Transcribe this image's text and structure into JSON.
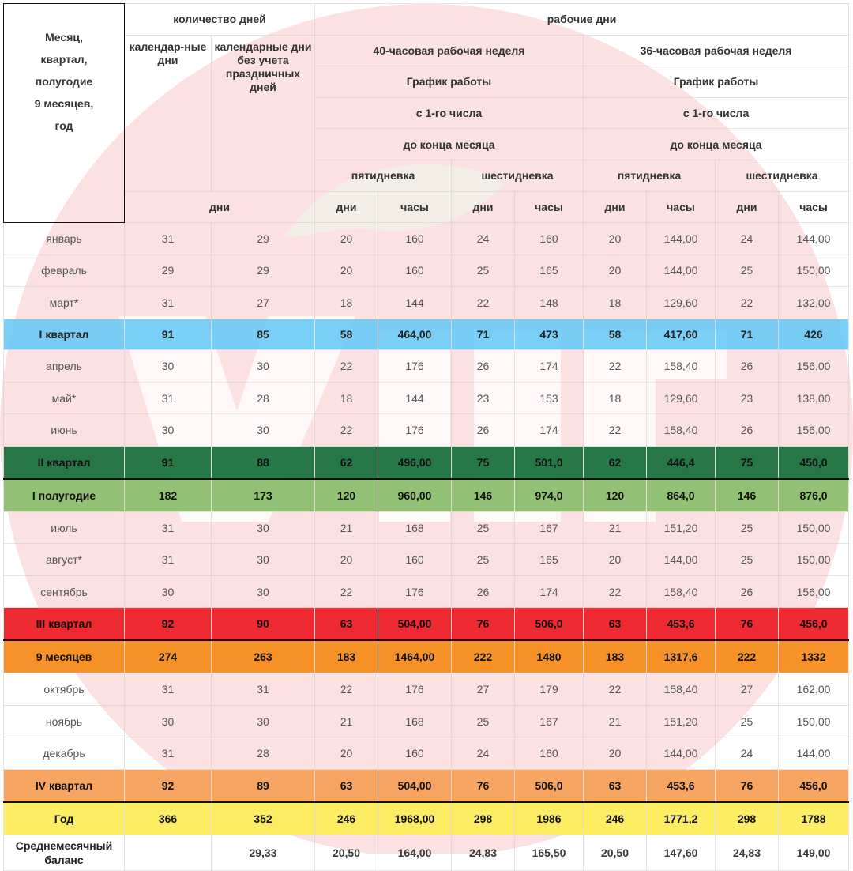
{
  "header": {
    "month_col": "Месяц, квартал, полугодие 9 месяцев, год",
    "days_count": "количество дней",
    "working_days": "рабочие дни",
    "calendar_days": "календар-ные дни",
    "calendar_no_holidays": "календарные дни без учета праздничных дней",
    "week40": "40-часовая рабочая неделя",
    "week36": "36-часовая рабочая неделя",
    "schedule": "График работы",
    "from_first": "с 1-го числа",
    "to_end": "до конца месяца",
    "five_day": "пятидневка",
    "six_day": "шестидневка",
    "days_unit": "дни",
    "days": "дни",
    "hours": "часы"
  },
  "rows": [
    {
      "name": "январь",
      "c": [
        "31",
        "29",
        "20",
        "160",
        "24",
        "160",
        "20",
        "144,00",
        "24",
        "144,00"
      ]
    },
    {
      "name": "февраль",
      "c": [
        "29",
        "29",
        "20",
        "160",
        "25",
        "165",
        "20",
        "144,00",
        "25",
        "150,00"
      ]
    },
    {
      "name": "март*",
      "c": [
        "31",
        "27",
        "18",
        "144",
        "22",
        "148",
        "18",
        "129,60",
        "22",
        "132,00"
      ]
    },
    {
      "name": "I квартал",
      "c": [
        "91",
        "85",
        "58",
        "464,00",
        "71",
        "473",
        "58",
        "417,60",
        "71",
        "426"
      ]
    },
    {
      "name": "апрель",
      "c": [
        "30",
        "30",
        "22",
        "176",
        "26",
        "174",
        "22",
        "158,40",
        "26",
        "156,00"
      ]
    },
    {
      "name": "май*",
      "c": [
        "31",
        "28",
        "18",
        "144",
        "23",
        "153",
        "18",
        "129,60",
        "23",
        "138,00"
      ]
    },
    {
      "name": "июнь",
      "c": [
        "30",
        "30",
        "22",
        "176",
        "26",
        "174",
        "22",
        "158,40",
        "26",
        "156,00"
      ]
    },
    {
      "name": "II квартал",
      "c": [
        "91",
        "88",
        "62",
        "496,00",
        "75",
        "501,0",
        "62",
        "446,4",
        "75",
        "450,0"
      ]
    },
    {
      "name": "I полугодие",
      "c": [
        "182",
        "173",
        "120",
        "960,00",
        "146",
        "974,0",
        "120",
        "864,0",
        "146",
        "876,0"
      ]
    },
    {
      "name": "июль",
      "c": [
        "31",
        "30",
        "21",
        "168",
        "25",
        "167",
        "21",
        "151,20",
        "25",
        "150,00"
      ]
    },
    {
      "name": "август*",
      "c": [
        "31",
        "30",
        "20",
        "160",
        "25",
        "165",
        "20",
        "144,00",
        "25",
        "150,00"
      ]
    },
    {
      "name": "сентябрь",
      "c": [
        "30",
        "30",
        "22",
        "176",
        "26",
        "174",
        "22",
        "158,40",
        "26",
        "156,00"
      ]
    },
    {
      "name": "III квартал",
      "c": [
        "92",
        "90",
        "63",
        "504,00",
        "76",
        "506,0",
        "63",
        "453,6",
        "76",
        "456,0"
      ]
    },
    {
      "name": "9 месяцев",
      "c": [
        "274",
        "263",
        "183",
        "1464,00",
        "222",
        "1480",
        "183",
        "1317,6",
        "222",
        "1332"
      ]
    },
    {
      "name": "октябрь",
      "c": [
        "31",
        "31",
        "22",
        "176",
        "27",
        "179",
        "22",
        "158,40",
        "27",
        "162,00"
      ]
    },
    {
      "name": "ноябрь",
      "c": [
        "30",
        "30",
        "21",
        "168",
        "25",
        "167",
        "21",
        "151,20",
        "25",
        "150,00"
      ]
    },
    {
      "name": "декабрь",
      "c": [
        "31",
        "28",
        "20",
        "160",
        "24",
        "160",
        "20",
        "144,00",
        "24",
        "144,00"
      ]
    },
    {
      "name": "IV квартал",
      "c": [
        "92",
        "89",
        "63",
        "504,00",
        "76",
        "506,0",
        "63",
        "453,6",
        "76",
        "456,0"
      ]
    },
    {
      "name": "Год",
      "c": [
        "366",
        "352",
        "246",
        "1968,00",
        "298",
        "1986",
        "246",
        "1771,2",
        "298",
        "1788"
      ]
    },
    {
      "name": "Среднемесячный баланс",
      "c": [
        "",
        "29,33",
        "20,50",
        "164,00",
        "24,83",
        "165,50",
        "20,50",
        "147,60",
        "24,83",
        "149,00"
      ]
    }
  ],
  "watermark_text": "Учет",
  "colors": {
    "q1": "#66c8f5",
    "q2": "#146e37",
    "h1": "#8cbe6e",
    "q3": "#ec2028",
    "m9": "#f68c1e",
    "q4": "#f6a05a",
    "year": "#fcec5a",
    "watermark": "#fbe0e0"
  }
}
